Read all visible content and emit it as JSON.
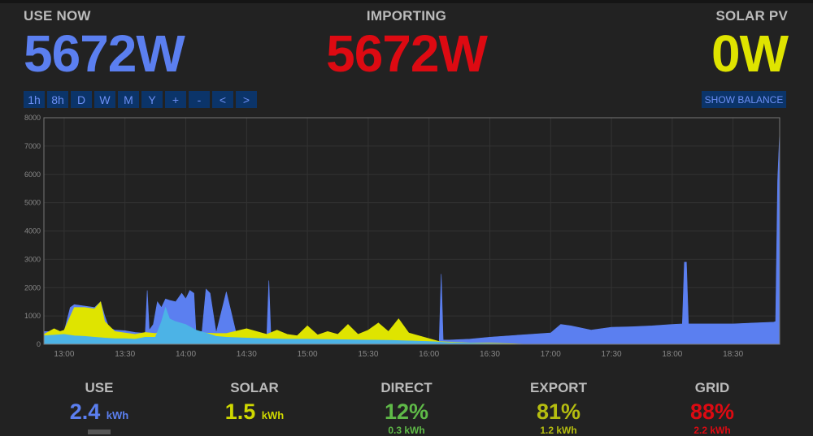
{
  "header": {
    "use_now": {
      "label": "USE NOW",
      "value": "5672W"
    },
    "importing": {
      "label": "IMPORTING",
      "value": "5672W"
    },
    "solar_pv": {
      "label": "SOLAR PV",
      "value": "0W"
    }
  },
  "range_buttons": [
    "1h",
    "8h",
    "D",
    "W",
    "M",
    "Y",
    "+",
    "-",
    "<",
    ">"
  ],
  "show_balance_label": "SHOW BALANCE",
  "colors": {
    "use": "#5b7ff0",
    "solar": "#dfe400",
    "direct": "#4cb3e6",
    "import": "#dd0a12"
  },
  "chart_data": {
    "type": "area",
    "x_ticks": [
      "13:00",
      "13:30",
      "14:00",
      "14:30",
      "15:00",
      "15:30",
      "16:00",
      "16:30",
      "17:00",
      "17:30",
      "18:00",
      "18:30"
    ],
    "xlim_minutes_label": [
      "12:50",
      "18:53"
    ],
    "ylim": [
      0,
      8000
    ],
    "y_ticks": [
      "0",
      "1000",
      "2000",
      "3000",
      "4000",
      "5000",
      "6000",
      "7000",
      "8000"
    ],
    "grid": true,
    "series": [
      {
        "name": "",
        "x": [
          "12:50",
          "12:58",
          "13:00",
          "13:03",
          "13:05",
          "13:10",
          "13:15",
          "13:18",
          "13:20",
          "13:22",
          "13:25",
          "13:30",
          "13:35",
          "13:38",
          "13:40",
          "13:41",
          "13:42",
          "13:44",
          "13:46",
          "13:48",
          "13:50",
          "13:52",
          "13:55",
          "13:58",
          "14:00",
          "14:02",
          "14:04",
          "14:05",
          "14:08",
          "14:10",
          "14:12",
          "14:15",
          "14:20",
          "14:25",
          "14:30",
          "14:35",
          "14:40",
          "14:41",
          "14:42",
          "14:45",
          "14:50",
          "14:55",
          "15:00",
          "15:05",
          "15:10",
          "15:15",
          "15:20",
          "15:25",
          "15:30",
          "15:35",
          "15:40",
          "15:45",
          "15:50",
          "15:55",
          "16:00",
          "16:05",
          "16:06",
          "16:07",
          "16:10",
          "16:20",
          "16:30",
          "16:40",
          "16:50",
          "17:00",
          "17:05",
          "17:10",
          "17:20",
          "17:30",
          "17:40",
          "17:50",
          "18:00",
          "18:05",
          "18:06",
          "18:07",
          "18:08",
          "18:10",
          "18:20",
          "18:30",
          "18:40",
          "18:50",
          "18:51",
          "18:52",
          "18:53"
        ],
        "y": [
          450,
          450,
          450,
          1300,
          1400,
          1350,
          1300,
          1500,
          1000,
          600,
          500,
          480,
          420,
          400,
          400,
          1900,
          500,
          700,
          1500,
          1300,
          1600,
          1550,
          1500,
          1800,
          1600,
          1900,
          1800,
          450,
          450,
          1950,
          1800,
          400,
          1850,
          350,
          320,
          300,
          320,
          2250,
          300,
          280,
          260,
          250,
          250,
          230,
          220,
          210,
          200,
          180,
          160,
          150,
          140,
          120,
          100,
          100,
          100,
          100,
          2480,
          150,
          150,
          180,
          250,
          300,
          350,
          400,
          700,
          650,
          500,
          600,
          620,
          650,
          700,
          720,
          2900,
          2900,
          720,
          720,
          720,
          720,
          750,
          780,
          800,
          5800,
          7500
        ]
      },
      {
        "name": "",
        "x": [
          "12:50",
          "12:55",
          "12:58",
          "13:00",
          "13:05",
          "13:10",
          "13:15",
          "13:18",
          "13:20",
          "13:25",
          "13:30",
          "13:35",
          "13:40",
          "13:45",
          "13:50",
          "14:00",
          "14:05",
          "14:10",
          "14:15",
          "14:20",
          "14:30",
          "14:40",
          "14:45",
          "14:50",
          "14:55",
          "15:00",
          "15:05",
          "15:10",
          "15:15",
          "15:20",
          "15:25",
          "15:30",
          "15:35",
          "15:40",
          "15:45",
          "15:50",
          "15:55",
          "16:00",
          "16:05",
          "16:10",
          "16:20",
          "16:30",
          "16:40",
          "16:50"
        ],
        "y": [
          350,
          550,
          450,
          500,
          1300,
          1300,
          1250,
          1500,
          800,
          450,
          400,
          350,
          420,
          380,
          500,
          450,
          450,
          400,
          380,
          380,
          550,
          350,
          500,
          350,
          300,
          650,
          330,
          450,
          350,
          700,
          350,
          500,
          750,
          450,
          900,
          400,
          300,
          200,
          100,
          80,
          50,
          40,
          20,
          0
        ]
      },
      {
        "name": "",
        "x": [
          "12:50",
          "13:00",
          "13:05",
          "13:10",
          "13:15",
          "13:20",
          "13:25",
          "13:30",
          "13:35",
          "13:40",
          "13:45",
          "13:48",
          "13:50",
          "13:52",
          "13:55",
          "14:00",
          "14:05",
          "14:10",
          "14:15",
          "14:20",
          "14:30",
          "14:40",
          "14:50",
          "15:00",
          "15:10",
          "15:20",
          "15:30",
          "15:40",
          "15:50",
          "16:00",
          "16:05",
          "16:10",
          "16:20",
          "16:30",
          "16:40",
          "16:50"
        ],
        "y": [
          300,
          350,
          300,
          280,
          250,
          220,
          200,
          200,
          180,
          250,
          250,
          800,
          1300,
          900,
          800,
          700,
          500,
          400,
          280,
          250,
          220,
          200,
          180,
          180,
          170,
          160,
          150,
          140,
          120,
          100,
          80,
          60,
          40,
          20,
          5,
          0
        ]
      }
    ]
  },
  "summary": {
    "use": {
      "label": "USE",
      "value": "2.4",
      "unit": "kWh"
    },
    "solar": {
      "label": "SOLAR",
      "value": "1.5",
      "unit": "kWh"
    },
    "direct": {
      "label": "DIRECT",
      "value": "12%",
      "sub": "0.3 kWh"
    },
    "export": {
      "label": "EXPORT",
      "value": "81%",
      "sub": "1.2 kWh"
    },
    "grid": {
      "label": "GRID",
      "value": "88%",
      "sub": "2.2 kWh"
    }
  }
}
